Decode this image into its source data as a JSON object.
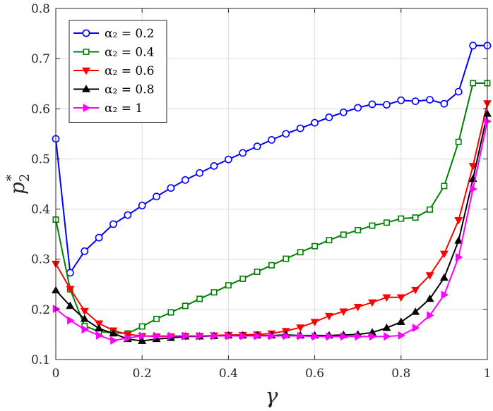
{
  "chart_data": {
    "type": "line",
    "title": "",
    "xlabel": "γ",
    "ylabel_base": "p",
    "ylabel_sub": "2",
    "ylabel_sup": "*",
    "xlim": [
      0,
      1
    ],
    "ylim": [
      0.1,
      0.8
    ],
    "xticks": [
      0,
      0.2,
      0.4,
      0.6,
      0.8,
      1
    ],
    "xtick_labels": [
      "0",
      "0.2",
      "0.4",
      "0.6",
      "0.8",
      "1"
    ],
    "yticks": [
      0.1,
      0.2,
      0.3,
      0.4,
      0.5,
      0.6,
      0.7,
      0.8
    ],
    "ytick_labels": [
      "0.1",
      "0.2",
      "0.3",
      "0.4",
      "0.5",
      "0.6",
      "0.7",
      "0.8"
    ],
    "grid": true,
    "legend_position": "top-left",
    "x": [
      0,
      0.0333,
      0.0667,
      0.1,
      0.1333,
      0.1667,
      0.2,
      0.2333,
      0.2667,
      0.3,
      0.3333,
      0.3667,
      0.4,
      0.4333,
      0.4667,
      0.5,
      0.5333,
      0.5667,
      0.6,
      0.6333,
      0.6667,
      0.7,
      0.7333,
      0.7667,
      0.8,
      0.8333,
      0.8667,
      0.9,
      0.9333,
      0.9667,
      1
    ],
    "series": [
      {
        "name": "α₂ = 0.2",
        "color": "#0000ff",
        "marker": "circle",
        "values": [
          0.54,
          0.273,
          0.316,
          0.343,
          0.37,
          0.388,
          0.407,
          0.425,
          0.442,
          0.458,
          0.472,
          0.486,
          0.499,
          0.512,
          0.525,
          0.538,
          0.55,
          0.561,
          0.572,
          0.583,
          0.593,
          0.602,
          0.609,
          0.608,
          0.617,
          0.615,
          0.618,
          0.61,
          0.634,
          0.726,
          0.726
        ]
      },
      {
        "name": "α₂ = 0.4",
        "color": "#008000",
        "marker": "square",
        "values": [
          0.379,
          0.24,
          0.167,
          0.156,
          0.153,
          0.152,
          0.166,
          0.181,
          0.194,
          0.207,
          0.221,
          0.234,
          0.248,
          0.261,
          0.275,
          0.288,
          0.301,
          0.314,
          0.326,
          0.338,
          0.349,
          0.358,
          0.367,
          0.373,
          0.381,
          0.383,
          0.399,
          0.446,
          0.534,
          0.651,
          0.651
        ]
      },
      {
        "name": "α₂ = 0.6",
        "color": "#ff0000",
        "marker": "triangle-down",
        "values": [
          0.291,
          0.241,
          0.197,
          0.172,
          0.158,
          0.15,
          0.147,
          0.146,
          0.146,
          0.147,
          0.147,
          0.148,
          0.149,
          0.149,
          0.15,
          0.152,
          0.157,
          0.164,
          0.175,
          0.187,
          0.196,
          0.205,
          0.214,
          0.224,
          0.224,
          0.239,
          0.268,
          0.311,
          0.378,
          0.486,
          0.611
        ]
      },
      {
        "name": "α₂ = 0.8",
        "color": "#000000",
        "marker": "triangle-up",
        "values": [
          0.238,
          0.207,
          0.181,
          0.162,
          0.152,
          0.141,
          0.137,
          0.141,
          0.143,
          0.146,
          0.146,
          0.147,
          0.148,
          0.148,
          0.148,
          0.148,
          0.149,
          0.148,
          0.148,
          0.148,
          0.149,
          0.15,
          0.154,
          0.163,
          0.175,
          0.195,
          0.221,
          0.263,
          0.337,
          0.46,
          0.59
        ]
      },
      {
        "name": "α₂ = 1",
        "color": "#ff00ff",
        "marker": "triangle-right",
        "values": [
          0.201,
          0.178,
          0.16,
          0.148,
          0.138,
          0.143,
          0.147,
          0.147,
          0.147,
          0.147,
          0.147,
          0.147,
          0.147,
          0.147,
          0.147,
          0.147,
          0.147,
          0.147,
          0.146,
          0.146,
          0.146,
          0.146,
          0.146,
          0.146,
          0.148,
          0.163,
          0.188,
          0.229,
          0.304,
          0.44,
          0.575
        ]
      }
    ]
  }
}
